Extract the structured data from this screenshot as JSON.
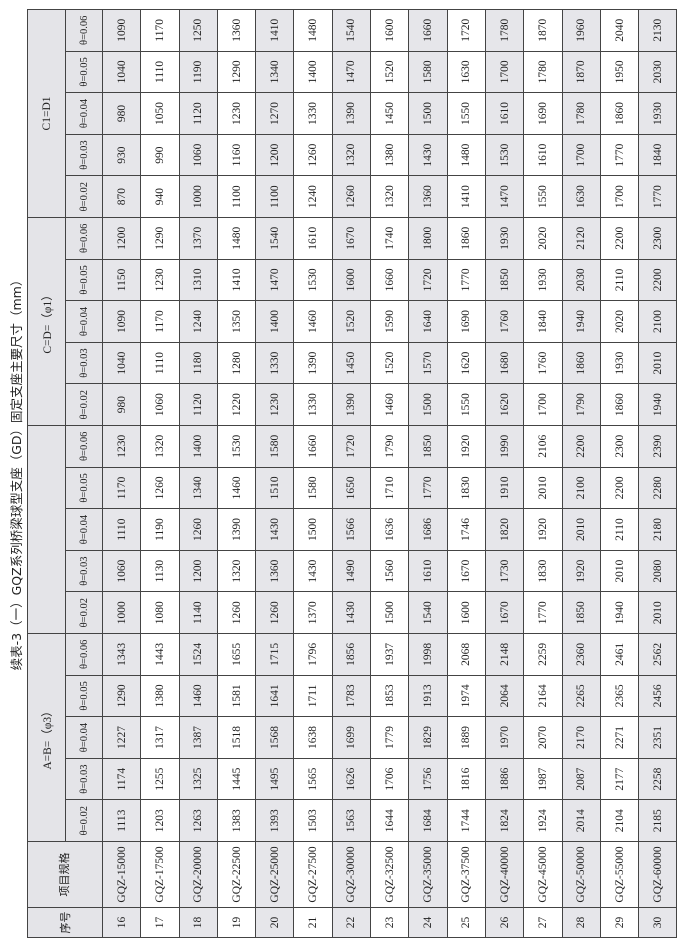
{
  "title": "续表-3（一）GQZ系列桥梁球型支座（GD）固定支座主要尺寸（mm）",
  "headers": {
    "index": "序号",
    "spec": "项目规格",
    "groups": [
      "A=B=（φ3）",
      "",
      "C=D=（φ1）",
      "C1=D1"
    ],
    "thetas": [
      "θ=0.02",
      "θ=0.03",
      "θ=0.04",
      "θ=0.05",
      "θ=0.06"
    ]
  },
  "colors": {
    "header_bg": "#e4e4e8",
    "shaded_row_bg": "#e6e6ea",
    "border": "#444444"
  },
  "rows": [
    {
      "no": "16",
      "spec": "GQZ-15000",
      "values": [
        "1113",
        "1174",
        "1227",
        "1290",
        "1343",
        "1000",
        "1060",
        "1110",
        "1170",
        "1230",
        "980",
        "1040",
        "1090",
        "1150",
        "1200",
        "870",
        "930",
        "980",
        "1040",
        "1090"
      ]
    },
    {
      "no": "17",
      "spec": "GQZ-17500",
      "values": [
        "1203",
        "1255",
        "1317",
        "1380",
        "1443",
        "1080",
        "1130",
        "1190",
        "1260",
        "1320",
        "1060",
        "1110",
        "1170",
        "1230",
        "1290",
        "940",
        "990",
        "1050",
        "1110",
        "1170"
      ]
    },
    {
      "no": "18",
      "spec": "GQZ-20000",
      "values": [
        "1263",
        "1325",
        "1387",
        "1460",
        "1524",
        "1140",
        "1200",
        "1260",
        "1340",
        "1400",
        "1120",
        "1180",
        "1240",
        "1310",
        "1370",
        "1000",
        "1060",
        "1120",
        "1190",
        "1250"
      ]
    },
    {
      "no": "19",
      "spec": "GQZ-22500",
      "values": [
        "1383",
        "1445",
        "1518",
        "1581",
        "1655",
        "1260",
        "1320",
        "1390",
        "1460",
        "1530",
        "1220",
        "1280",
        "1350",
        "1410",
        "1480",
        "1100",
        "1160",
        "1230",
        "1290",
        "1360"
      ]
    },
    {
      "no": "20",
      "spec": "GQZ-25000",
      "values": [
        "1393",
        "1495",
        "1568",
        "1641",
        "1715",
        "1260",
        "1360",
        "1430",
        "1510",
        "1580",
        "1230",
        "1330",
        "1400",
        "1470",
        "1540",
        "1100",
        "1200",
        "1270",
        "1340",
        "1410"
      ]
    },
    {
      "no": "21",
      "spec": "GQZ-27500",
      "values": [
        "1503",
        "1565",
        "1638",
        "1711",
        "1796",
        "1370",
        "1430",
        "1500",
        "1580",
        "1660",
        "1330",
        "1390",
        "1460",
        "1530",
        "1610",
        "1240",
        "1260",
        "1330",
        "1400",
        "1480"
      ]
    },
    {
      "no": "22",
      "spec": "GQZ-30000",
      "values": [
        "1563",
        "1626",
        "1699",
        "1783",
        "1856",
        "1430",
        "1490",
        "1566",
        "1650",
        "1720",
        "1390",
        "1450",
        "1520",
        "1600",
        "1670",
        "1260",
        "1320",
        "1390",
        "1470",
        "1540"
      ]
    },
    {
      "no": "23",
      "spec": "GQZ-32500",
      "values": [
        "1644",
        "1706",
        "1779",
        "1853",
        "1937",
        "1500",
        "1560",
        "1636",
        "1710",
        "1790",
        "1460",
        "1520",
        "1590",
        "1660",
        "1740",
        "1320",
        "1380",
        "1450",
        "1520",
        "1600"
      ]
    },
    {
      "no": "24",
      "spec": "GQZ-35000",
      "values": [
        "1684",
        "1756",
        "1829",
        "1913",
        "1998",
        "1540",
        "1610",
        "1686",
        "1770",
        "1850",
        "1500",
        "1570",
        "1640",
        "1720",
        "1800",
        "1360",
        "1430",
        "1500",
        "1580",
        "1660"
      ]
    },
    {
      "no": "25",
      "spec": "GQZ-37500",
      "values": [
        "1744",
        "1816",
        "1889",
        "1974",
        "2068",
        "1600",
        "1670",
        "1746",
        "1830",
        "1920",
        "1550",
        "1620",
        "1690",
        "1770",
        "1860",
        "1410",
        "1480",
        "1550",
        "1630",
        "1720"
      ]
    },
    {
      "no": "26",
      "spec": "GQZ-40000",
      "values": [
        "1824",
        "1886",
        "1970",
        "2064",
        "2148",
        "1670",
        "1730",
        "1820",
        "1910",
        "1990",
        "1620",
        "1680",
        "1760",
        "1850",
        "1930",
        "1470",
        "1530",
        "1610",
        "1700",
        "1780"
      ]
    },
    {
      "no": "27",
      "spec": "GQZ-45000",
      "values": [
        "1924",
        "1987",
        "2070",
        "2164",
        "2259",
        "1770",
        "1830",
        "1920",
        "2010",
        "2106",
        "1700",
        "1760",
        "1840",
        "1930",
        "2020",
        "1550",
        "1610",
        "1690",
        "1780",
        "1870"
      ]
    },
    {
      "no": "28",
      "spec": "GQZ-50000",
      "values": [
        "2014",
        "2087",
        "2170",
        "2265",
        "2360",
        "1850",
        "1920",
        "2010",
        "2100",
        "2200",
        "1790",
        "1860",
        "1940",
        "2030",
        "2120",
        "1630",
        "1700",
        "1780",
        "1870",
        "1960"
      ]
    },
    {
      "no": "29",
      "spec": "GQZ-55000",
      "values": [
        "2104",
        "2177",
        "2271",
        "2365",
        "2461",
        "1940",
        "2010",
        "2110",
        "2200",
        "2300",
        "1860",
        "1930",
        "2020",
        "2110",
        "2200",
        "1700",
        "1770",
        "1860",
        "1950",
        "2040"
      ]
    },
    {
      "no": "30",
      "spec": "GQZ-60000",
      "values": [
        "2185",
        "2258",
        "2351",
        "2456",
        "2562",
        "2010",
        "2080",
        "2180",
        "2280",
        "2390",
        "1940",
        "2010",
        "2100",
        "2200",
        "2300",
        "1770",
        "1840",
        "1930",
        "2030",
        "2130"
      ]
    }
  ]
}
